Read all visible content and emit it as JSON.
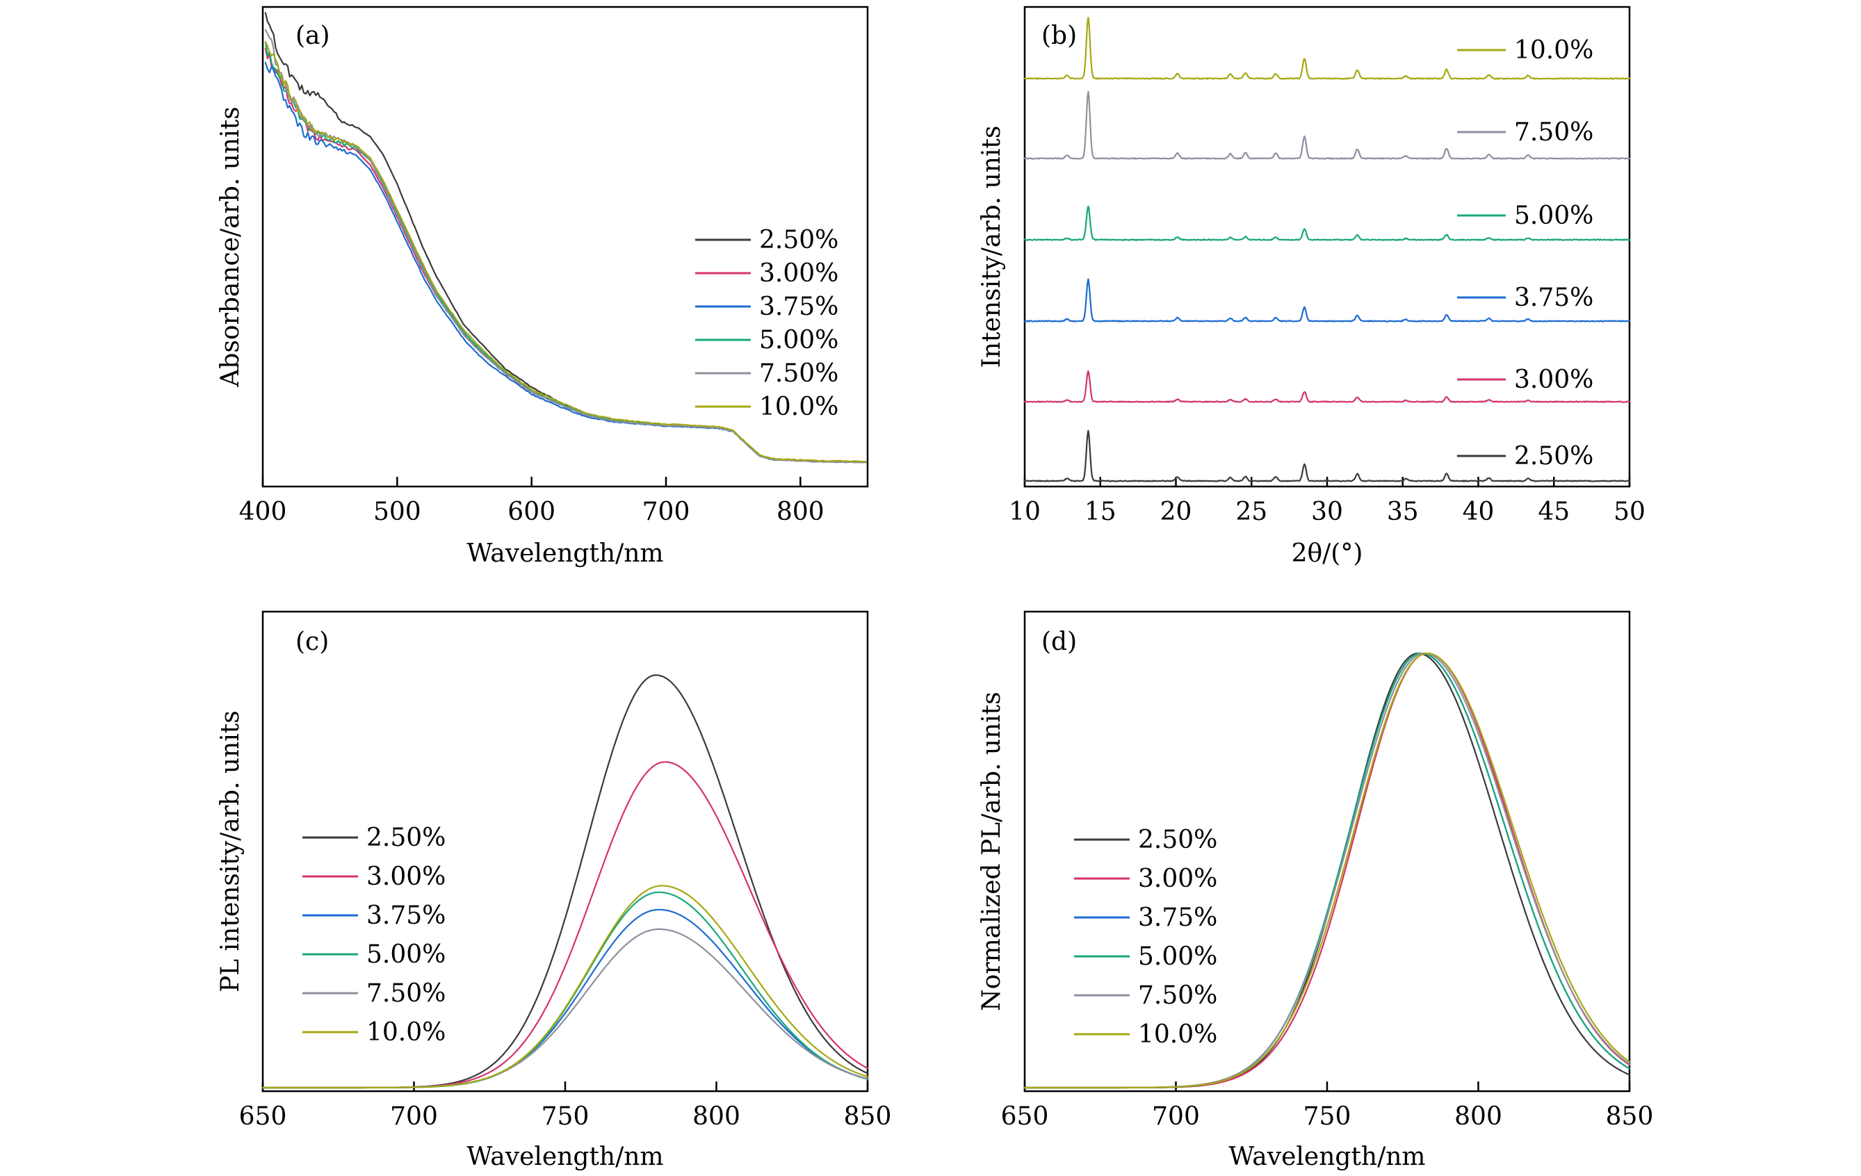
{
  "figure": "4-panel scientific figure",
  "colors": {
    "2.50%": "#3a3a3a",
    "3.00%": "#d6336c",
    "3.75%": "#1c6cd1",
    "5.00%": "#17a77e",
    "7.50%": "#8f8f9f",
    "10.0%": "#a6a812",
    "xrd_peak_highlight_10.0%": "#f08a1c",
    "xrd_peak_highlight_7.50%": "#9a6df0"
  },
  "chart_data": [
    {
      "panel": "(a)",
      "type": "line",
      "xlabel": "Wavelength/nm",
      "ylabel": "Absorbance/arb. units",
      "xlim": [
        400,
        850
      ],
      "ylim": [
        0,
        1
      ],
      "xticks": [
        "400",
        "500",
        "600",
        "700",
        "800"
      ],
      "yticks_visible": false,
      "legend_position": "center-right",
      "series": [
        {
          "name": "2.50%",
          "x": [
            402,
            410,
            420,
            430,
            440,
            450,
            460,
            470,
            480,
            490,
            500,
            510,
            520,
            530,
            540,
            550,
            560,
            570,
            580,
            590,
            600,
            620,
            640,
            660,
            680,
            700,
            720,
            740,
            750,
            760,
            770,
            780,
            800,
            820,
            850
          ],
          "y": [
            1.0,
            0.93,
            0.87,
            0.84,
            0.83,
            0.8,
            0.77,
            0.76,
            0.74,
            0.7,
            0.64,
            0.57,
            0.5,
            0.44,
            0.39,
            0.34,
            0.31,
            0.28,
            0.25,
            0.23,
            0.21,
            0.18,
            0.155,
            0.14,
            0.135,
            0.13,
            0.128,
            0.125,
            0.118,
            0.09,
            0.065,
            0.058,
            0.055,
            0.053,
            0.052
          ]
        },
        {
          "name": "3.00%",
          "x": [
            402,
            410,
            420,
            430,
            440,
            450,
            460,
            470,
            480,
            490,
            500,
            510,
            520,
            530,
            540,
            550,
            560,
            570,
            580,
            590,
            600,
            620,
            640,
            660,
            680,
            700,
            720,
            740,
            750,
            760,
            770,
            780,
            800,
            820,
            850
          ],
          "y": [
            0.92,
            0.88,
            0.82,
            0.77,
            0.74,
            0.73,
            0.72,
            0.71,
            0.68,
            0.63,
            0.57,
            0.51,
            0.45,
            0.4,
            0.36,
            0.32,
            0.29,
            0.265,
            0.24,
            0.22,
            0.2,
            0.175,
            0.152,
            0.14,
            0.134,
            0.13,
            0.127,
            0.124,
            0.117,
            0.09,
            0.064,
            0.058,
            0.055,
            0.053,
            0.052
          ]
        },
        {
          "name": "3.75%",
          "x": [
            402,
            410,
            420,
            430,
            440,
            450,
            460,
            470,
            480,
            490,
            500,
            510,
            520,
            530,
            540,
            550,
            560,
            570,
            580,
            590,
            600,
            620,
            640,
            660,
            680,
            700,
            720,
            740,
            750,
            760,
            770,
            780,
            800,
            820,
            850
          ],
          "y": [
            0.9,
            0.86,
            0.8,
            0.75,
            0.73,
            0.72,
            0.71,
            0.7,
            0.67,
            0.62,
            0.56,
            0.5,
            0.44,
            0.39,
            0.35,
            0.31,
            0.28,
            0.255,
            0.235,
            0.215,
            0.195,
            0.17,
            0.148,
            0.137,
            0.132,
            0.128,
            0.126,
            0.123,
            0.116,
            0.089,
            0.064,
            0.057,
            0.055,
            0.053,
            0.052
          ]
        },
        {
          "name": "5.00%",
          "x": [
            402,
            410,
            420,
            430,
            440,
            450,
            460,
            470,
            480,
            490,
            500,
            510,
            520,
            530,
            540,
            550,
            560,
            570,
            580,
            590,
            600,
            620,
            640,
            660,
            680,
            700,
            720,
            740,
            750,
            760,
            770,
            780,
            800,
            820,
            850
          ],
          "y": [
            0.93,
            0.88,
            0.82,
            0.77,
            0.745,
            0.735,
            0.725,
            0.715,
            0.69,
            0.64,
            0.58,
            0.52,
            0.46,
            0.405,
            0.365,
            0.325,
            0.295,
            0.268,
            0.243,
            0.222,
            0.202,
            0.177,
            0.153,
            0.141,
            0.135,
            0.131,
            0.128,
            0.125,
            0.118,
            0.09,
            0.065,
            0.058,
            0.055,
            0.053,
            0.052
          ]
        },
        {
          "name": "7.50%",
          "x": [
            402,
            410,
            420,
            430,
            440,
            450,
            460,
            470,
            480,
            490,
            500,
            510,
            520,
            530,
            540,
            550,
            560,
            570,
            580,
            590,
            600,
            620,
            640,
            660,
            680,
            700,
            720,
            740,
            750,
            760,
            770,
            780,
            800,
            820,
            850
          ],
          "y": [
            0.98,
            0.9,
            0.83,
            0.78,
            0.75,
            0.74,
            0.73,
            0.72,
            0.69,
            0.635,
            0.575,
            0.515,
            0.455,
            0.4,
            0.36,
            0.32,
            0.29,
            0.265,
            0.24,
            0.22,
            0.2,
            0.175,
            0.151,
            0.139,
            0.133,
            0.129,
            0.127,
            0.124,
            0.117,
            0.09,
            0.064,
            0.057,
            0.054,
            0.052,
            0.051
          ]
        },
        {
          "name": "10.0%",
          "x": [
            402,
            410,
            420,
            430,
            440,
            450,
            460,
            470,
            480,
            490,
            500,
            510,
            520,
            530,
            540,
            550,
            560,
            570,
            580,
            590,
            600,
            620,
            640,
            660,
            680,
            700,
            720,
            740,
            750,
            760,
            770,
            780,
            800,
            820,
            850
          ],
          "y": [
            0.94,
            0.89,
            0.83,
            0.78,
            0.75,
            0.74,
            0.73,
            0.72,
            0.695,
            0.645,
            0.585,
            0.525,
            0.465,
            0.41,
            0.37,
            0.33,
            0.3,
            0.272,
            0.246,
            0.225,
            0.205,
            0.18,
            0.155,
            0.143,
            0.137,
            0.132,
            0.129,
            0.126,
            0.119,
            0.091,
            0.066,
            0.059,
            0.056,
            0.054,
            0.053
          ]
        }
      ]
    },
    {
      "panel": "(b)",
      "type": "line",
      "xlabel": "2θ/(°)",
      "ylabel": "Intensity/arb. units",
      "xlim": [
        10,
        50
      ],
      "xticks": [
        "10",
        "15",
        "20",
        "25",
        "30",
        "35",
        "40",
        "45",
        "50"
      ],
      "yticks_visible": false,
      "stacked": true,
      "peaks": [
        {
          "two_theta": 12.8,
          "rel": 0.05
        },
        {
          "two_theta": 14.2,
          "rel": 1.0
        },
        {
          "two_theta": 20.1,
          "rel": 0.08
        },
        {
          "two_theta": 23.6,
          "rel": 0.07
        },
        {
          "two_theta": 24.6,
          "rel": 0.09
        },
        {
          "two_theta": 26.6,
          "rel": 0.08
        },
        {
          "two_theta": 28.5,
          "rel": 0.33
        },
        {
          "two_theta": 32.0,
          "rel": 0.14
        },
        {
          "two_theta": 35.2,
          "rel": 0.04
        },
        {
          "two_theta": 37.9,
          "rel": 0.15
        },
        {
          "two_theta": 40.7,
          "rel": 0.06
        },
        {
          "two_theta": 43.3,
          "rel": 0.05
        }
      ],
      "series": [
        {
          "name": "10.0%",
          "scale": 1.1
        },
        {
          "name": "7.50%",
          "scale": 1.2
        },
        {
          "name": "5.00%",
          "scale": 0.6
        },
        {
          "name": "3.75%",
          "scale": 0.75
        },
        {
          "name": "3.00%",
          "scale": 0.55
        },
        {
          "name": "2.50%",
          "scale": 0.9
        }
      ]
    },
    {
      "panel": "(c)",
      "type": "line",
      "xlabel": "Wavelength/nm",
      "ylabel": "PL intensity/arb. units",
      "xlim": [
        650,
        850
      ],
      "ylim": [
        0,
        1
      ],
      "xticks": [
        "650",
        "700",
        "750",
        "800",
        "850"
      ],
      "yticks_visible": false,
      "legend_position": "center-left",
      "series": [
        {
          "name": "2.50%",
          "center": 780,
          "amplitude": 0.95,
          "width": 22.5
        },
        {
          "name": "3.00%",
          "center": 783,
          "amplitude": 0.75,
          "width": 23.5
        },
        {
          "name": "3.75%",
          "center": 781,
          "amplitude": 0.41,
          "width": 23.5
        },
        {
          "name": "5.00%",
          "center": 781,
          "amplitude": 0.45,
          "width": 23.0
        },
        {
          "name": "7.50%",
          "center": 781,
          "amplitude": 0.365,
          "width": 24.0
        },
        {
          "name": "10.0%",
          "center": 782,
          "amplitude": 0.465,
          "width": 23.5
        }
      ]
    },
    {
      "panel": "(d)",
      "type": "line",
      "xlabel": "Wavelength/nm",
      "ylabel": "Normalized PL/arb. units",
      "xlim": [
        650,
        850
      ],
      "ylim": [
        0,
        1.05
      ],
      "xticks": [
        "650",
        "700",
        "750",
        "800",
        "850"
      ],
      "yticks_visible": false,
      "legend_position": "center-left",
      "series": [
        {
          "name": "2.50%",
          "center": 780,
          "width": 22.0
        },
        {
          "name": "3.00%",
          "center": 783,
          "width": 23.0
        },
        {
          "name": "3.75%",
          "center": 781,
          "width": 23.0
        },
        {
          "name": "5.00%",
          "center": 781,
          "width": 23.0
        },
        {
          "name": "7.50%",
          "center": 782,
          "width": 23.5
        },
        {
          "name": "10.0%",
          "center": 783,
          "width": 23.5
        }
      ]
    }
  ],
  "legend_labels": [
    "2.50%",
    "3.00%",
    "3.75%",
    "5.00%",
    "7.50%",
    "10.0%"
  ]
}
